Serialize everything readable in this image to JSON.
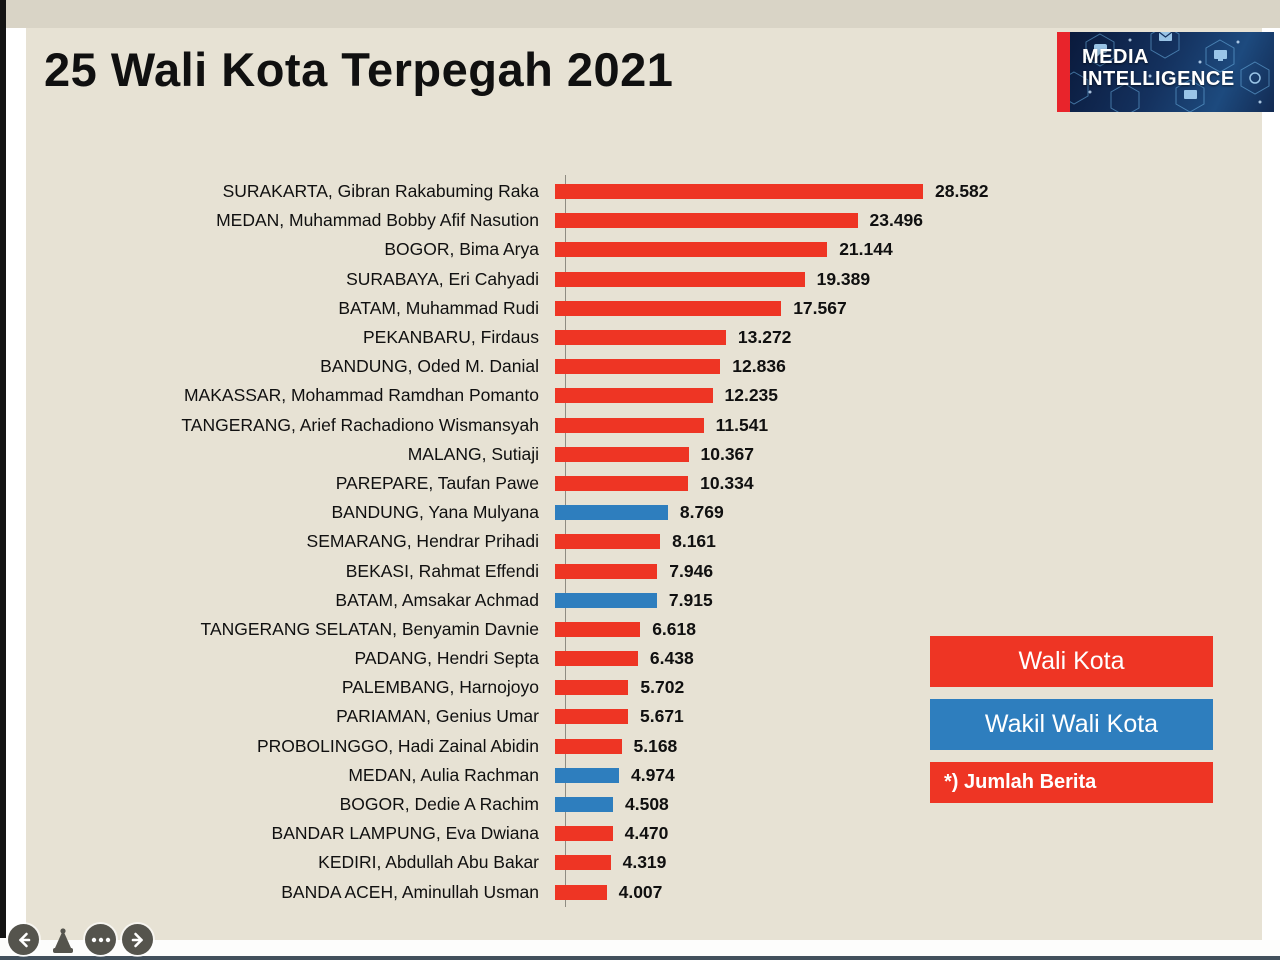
{
  "page": {
    "title": "25 Wali Kota Terpegah 2021"
  },
  "logo": {
    "line1": "MEDIA",
    "line2": "INTELLIGENCE",
    "accent_color": "#e8242b",
    "bg_color": "#14315e"
  },
  "colors": {
    "slide_bg": "#e7e2d4",
    "wali_kota_red": "#ee3524",
    "wakil_blue": "#2e7ebe",
    "title_text": "#101010"
  },
  "chart_data": {
    "type": "bar",
    "orientation": "horizontal",
    "title": "25 Wali Kota Terpegah 2021",
    "xlabel": "",
    "ylabel": "",
    "value_note": "*) Jumlah Berita",
    "grid": false,
    "legend_position": "right",
    "legend": [
      {
        "label": "Wali Kota",
        "color": "#ee3524"
      },
      {
        "label": "Wakil Wali Kota",
        "color": "#2e7ebe"
      }
    ],
    "items": [
      {
        "label": "SURAKARTA, Gibran Rakabuming Raka",
        "display": "28.582",
        "value": 28582,
        "series": "Wali Kota"
      },
      {
        "label": "MEDAN, Muhammad Bobby Afif Nasution",
        "display": "23.496",
        "value": 23496,
        "series": "Wali Kota"
      },
      {
        "label": "BOGOR, Bima Arya",
        "display": "21.144",
        "value": 21144,
        "series": "Wali Kota"
      },
      {
        "label": "SURABAYA, Eri Cahyadi",
        "display": "19.389",
        "value": 19389,
        "series": "Wali Kota"
      },
      {
        "label": "BATAM, Muhammad Rudi",
        "display": "17.567",
        "value": 17567,
        "series": "Wali Kota"
      },
      {
        "label": "PEKANBARU, Firdaus",
        "display": "13.272",
        "value": 13272,
        "series": "Wali Kota"
      },
      {
        "label": "BANDUNG, Oded M. Danial",
        "display": "12.836",
        "value": 12836,
        "series": "Wali Kota"
      },
      {
        "label": "MAKASSAR, Mohammad Ramdhan Pomanto",
        "display": "12.235",
        "value": 12235,
        "series": "Wali Kota"
      },
      {
        "label": "TANGERANG, Arief Rachadiono Wismansyah",
        "display": "11.541",
        "value": 11541,
        "series": "Wali Kota"
      },
      {
        "label": "MALANG, Sutiaji",
        "display": "10.367",
        "value": 10367,
        "series": "Wali Kota"
      },
      {
        "label": "PAREPARE, Taufan Pawe",
        "display": "10.334",
        "value": 10334,
        "series": "Wali Kota"
      },
      {
        "label": "BANDUNG, Yana Mulyana",
        "display": "8.769",
        "value": 8769,
        "series": "Wakil Wali Kota"
      },
      {
        "label": "SEMARANG, Hendrar Prihadi",
        "display": "8.161",
        "value": 8161,
        "series": "Wali Kota"
      },
      {
        "label": "BEKASI, Rahmat Effendi",
        "display": "7.946",
        "value": 7946,
        "series": "Wali Kota"
      },
      {
        "label": "BATAM, Amsakar Achmad",
        "display": "7.915",
        "value": 7915,
        "series": "Wakil Wali Kota"
      },
      {
        "label": "TANGERANG SELATAN, Benyamin Davnie",
        "display": "6.618",
        "value": 6618,
        "series": "Wali Kota"
      },
      {
        "label": "PADANG, Hendri Septa",
        "display": "6.438",
        "value": 6438,
        "series": "Wali Kota"
      },
      {
        "label": "PALEMBANG, Harnojoyo",
        "display": "5.702",
        "value": 5702,
        "series": "Wali Kota"
      },
      {
        "label": "PARIAMAN, Genius Umar",
        "display": "5.671",
        "value": 5671,
        "series": "Wali Kota"
      },
      {
        "label": "PROBOLINGGO, Hadi Zainal Abidin",
        "display": "5.168",
        "value": 5168,
        "series": "Wali Kota"
      },
      {
        "label": "MEDAN, Aulia Rachman",
        "display": "4.974",
        "value": 4974,
        "series": "Wakil Wali Kota"
      },
      {
        "label": "BOGOR, Dedie A Rachim",
        "display": "4.508",
        "value": 4508,
        "series": "Wakil Wali Kota"
      },
      {
        "label": "BANDAR LAMPUNG, Eva Dwiana",
        "display": "4.470",
        "value": 4470,
        "series": "Wali Kota"
      },
      {
        "label": "KEDIRI, Abdullah Abu Bakar",
        "display": "4.319",
        "value": 4319,
        "series": "Wali Kota"
      },
      {
        "label": "BANDA ACEH, Aminullah Usman",
        "display": "4.007",
        "value": 4007,
        "series": "Wali Kota"
      }
    ]
  },
  "legend_panel": {
    "box1": "Wali Kota",
    "box2": "Wakil Wali Kota",
    "note": "*) Jumlah Berita"
  },
  "viewer": {
    "prev": "previous-page",
    "pointer": "pointer-tool",
    "more": "more-options",
    "next": "next-page"
  }
}
